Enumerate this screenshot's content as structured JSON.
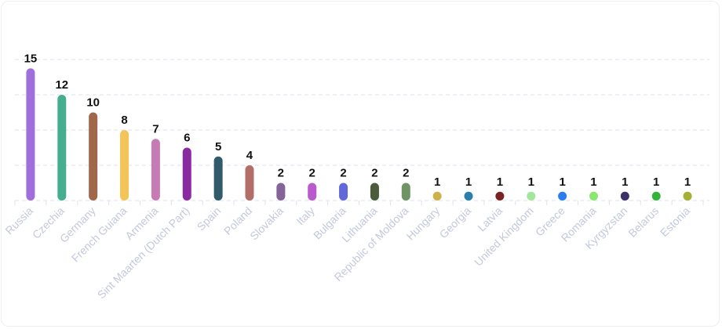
{
  "chart_data": {
    "type": "bar",
    "categories": [
      "Russia",
      "Czechia",
      "Germany",
      "French Guiana",
      "Armenia",
      "Sint Maarten (Dutch Part)",
      "Spain",
      "Poland",
      "Slovakia",
      "Italy",
      "Bulgaria",
      "Lithuania",
      "Republic of Moldova",
      "Hungary",
      "Georgia",
      "Latvia",
      "United Kingdom",
      "Greece",
      "Romania",
      "Kyrgyzstan",
      "Belarus",
      "Estonia"
    ],
    "values": [
      15,
      12,
      10,
      8,
      7,
      6,
      5,
      4,
      2,
      2,
      2,
      2,
      2,
      1,
      1,
      1,
      1,
      1,
      1,
      1,
      1,
      1
    ],
    "colors": [
      "#a06fdc",
      "#45ae8f",
      "#a0674a",
      "#f3c559",
      "#c77bb4",
      "#8a2aa0",
      "#315b6b",
      "#b46e6a",
      "#846499",
      "#b95bcc",
      "#6068da",
      "#4a5c3a",
      "#6e9463",
      "#cdb14a",
      "#2a7eac",
      "#7a2324",
      "#a3e79c",
      "#2a7ef0",
      "#8be86e",
      "#3c2f6a",
      "#34b33a",
      "#a3b034"
    ],
    "title": "",
    "xlabel": "",
    "ylabel": "",
    "ylim": [
      0,
      16
    ],
    "grid": true,
    "data_labels": true
  }
}
